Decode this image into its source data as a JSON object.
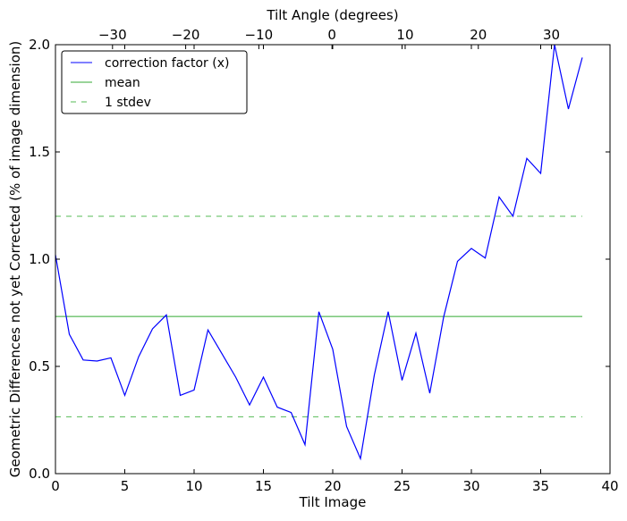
{
  "chart_data": {
    "type": "line",
    "xlabel": "Tilt Image",
    "ylabel": "Geometric Differences not yet Corrected (% of image dimension)",
    "top_xlabel": "Tilt Angle (degrees)",
    "xlim": [
      0,
      40
    ],
    "ylim": [
      0,
      2.0
    ],
    "top_xlim": [
      -37.8,
      38.0
    ],
    "x_ticks": [
      0,
      5,
      10,
      15,
      20,
      25,
      30,
      35,
      40
    ],
    "y_ticks": [
      0.0,
      0.5,
      1.0,
      1.5,
      2.0
    ],
    "y_tick_labels": [
      "0.0",
      "0.5",
      "1.0",
      "1.5",
      "2.0"
    ],
    "top_x_ticks": [
      -30,
      -20,
      -10,
      0,
      10,
      20,
      30
    ],
    "top_x_tick_labels": [
      "−30",
      "−20",
      "−10",
      "0",
      "10",
      "20",
      "30"
    ],
    "grid": false,
    "legend_position": "top-left",
    "series": [
      {
        "name": "correction factor (x)",
        "color": "#0000ff",
        "style": "solid",
        "x": [
          0,
          1,
          2,
          3,
          4,
          5,
          6,
          7,
          8,
          9,
          10,
          11,
          12,
          13,
          14,
          15,
          16,
          17,
          18,
          19,
          20,
          21,
          22,
          23,
          24,
          25,
          26,
          27,
          28,
          29,
          30,
          31,
          32,
          33,
          34,
          35,
          36,
          37,
          38
        ],
        "values": [
          1.02,
          0.65,
          0.53,
          0.525,
          0.54,
          0.365,
          0.545,
          0.675,
          0.74,
          0.365,
          0.39,
          0.67,
          0.56,
          0.45,
          0.32,
          0.45,
          0.31,
          0.285,
          0.135,
          0.755,
          0.58,
          0.22,
          0.07,
          0.46,
          0.755,
          0.435,
          0.655,
          0.375,
          0.73,
          0.99,
          1.05,
          1.005,
          1.29,
          1.2,
          1.47,
          1.4,
          2.0,
          1.7,
          1.94
        ]
      },
      {
        "name": "mean",
        "color": "#33aa33",
        "style": "solid",
        "x": [
          0,
          38
        ],
        "values": [
          0.733,
          0.733
        ]
      },
      {
        "name": "1 stdev",
        "color": "#55bb55",
        "style": "dashed",
        "x": [
          0,
          38
        ],
        "values": [
          1.2,
          1.2
        ],
        "lower_values": [
          0.265,
          0.265
        ]
      }
    ]
  }
}
